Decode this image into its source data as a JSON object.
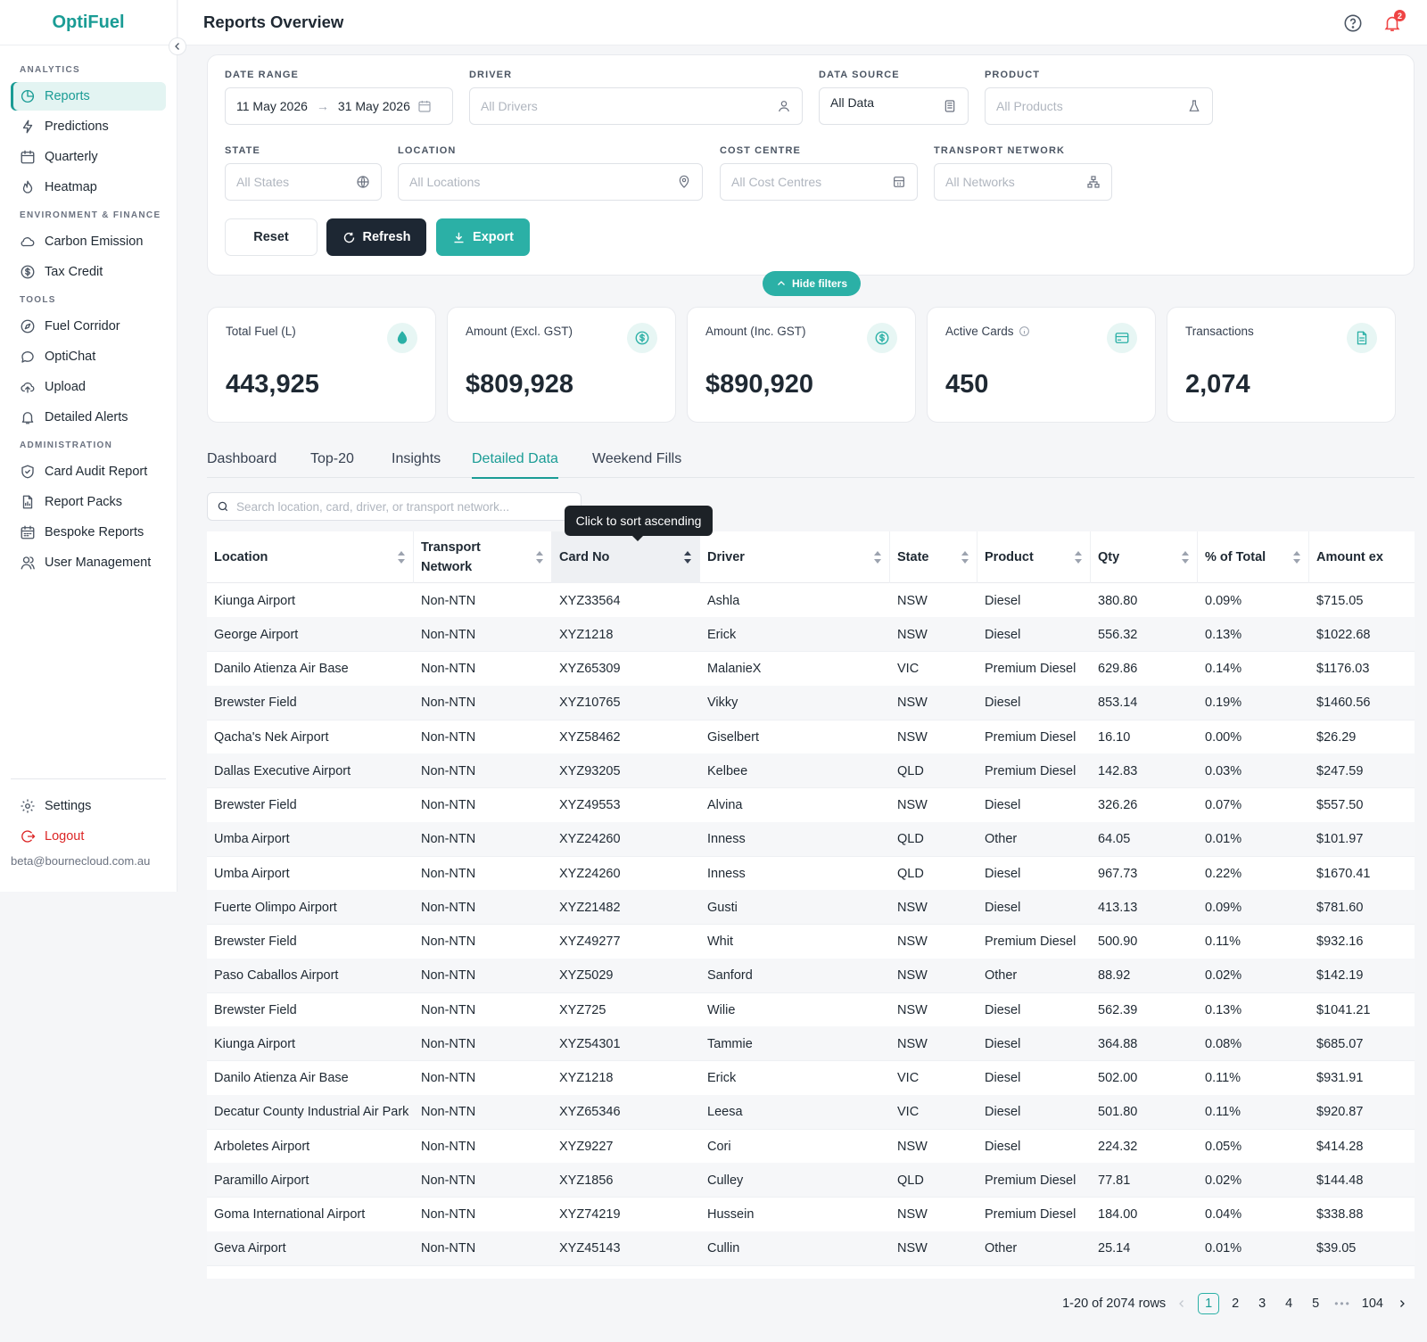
{
  "brand": "OptiFuel",
  "header": {
    "title": "Reports Overview",
    "notification_count": "2"
  },
  "sidebar": {
    "sections": [
      {
        "label": "ANALYTICS",
        "items": [
          {
            "label": "Reports",
            "icon": "pie-chart-icon",
            "active": true
          },
          {
            "label": "Predictions",
            "icon": "lightning-icon"
          },
          {
            "label": "Quarterly",
            "icon": "calendar-icon"
          },
          {
            "label": "Heatmap",
            "icon": "flame-icon"
          }
        ]
      },
      {
        "label": "ENVIRONMENT & FINANCE",
        "items": [
          {
            "label": "Carbon Emission",
            "icon": "cloud-icon"
          },
          {
            "label": "Tax Credit",
            "icon": "dollar-circle-icon"
          }
        ]
      },
      {
        "label": "TOOLS",
        "items": [
          {
            "label": "Fuel Corridor",
            "icon": "compass-icon"
          },
          {
            "label": "OptiChat",
            "icon": "chat-icon"
          },
          {
            "label": "Upload",
            "icon": "cloud-upload-icon"
          },
          {
            "label": "Detailed Alerts",
            "icon": "bell-icon"
          }
        ]
      },
      {
        "label": "ADMINISTRATION",
        "items": [
          {
            "label": "Card Audit Report",
            "icon": "shield-check-icon"
          },
          {
            "label": "Report Packs",
            "icon": "file-chart-icon"
          },
          {
            "label": "Bespoke Reports",
            "icon": "calendar-grid-icon"
          },
          {
            "label": "User Management",
            "icon": "users-icon"
          }
        ]
      }
    ],
    "settings_label": "Settings",
    "logout_label": "Logout",
    "user_email": "beta@bournecloud.com.au"
  },
  "filters": {
    "date_range_label": "DATE RANGE",
    "date_start": "11 May 2026",
    "date_end": "31 May 2026",
    "driver_label": "DRIVER",
    "driver_placeholder": "All Drivers",
    "data_source_label": "DATA SOURCE",
    "data_source_value": "All Data",
    "product_label": "PRODUCT",
    "product_placeholder": "All Products",
    "state_label": "STATE",
    "state_placeholder": "All States",
    "location_label": "LOCATION",
    "location_placeholder": "All Locations",
    "cost_centre_label": "COST CENTRE",
    "cost_centre_placeholder": "All Cost Centres",
    "transport_label": "TRANSPORT NETWORK",
    "transport_placeholder": "All Networks",
    "reset": "Reset",
    "refresh": "Refresh",
    "export": "Export",
    "hide_filters": "Hide filters"
  },
  "kpis": [
    {
      "label": "Total Fuel (L)",
      "value": "443,925",
      "icon": "droplet-icon"
    },
    {
      "label": "Amount (Excl. GST)",
      "value": "$809,928",
      "icon": "dollar-icon"
    },
    {
      "label": "Amount (Inc. GST)",
      "value": "$890,920",
      "icon": "dollar-icon"
    },
    {
      "label": "Active Cards",
      "value": "450",
      "icon": "card-icon"
    },
    {
      "label": "Transactions",
      "value": "2,074",
      "icon": "document-icon"
    }
  ],
  "tabs": [
    "Dashboard",
    "Top-20",
    "Insights",
    "Detailed Data",
    "Weekend Fills"
  ],
  "active_tab": "Detailed Data",
  "search_placeholder": "Search location, card, driver, or transport network...",
  "tooltip": "Click to sort ascending",
  "table": {
    "columns": [
      "Location",
      "Transport Network",
      "Card No",
      "Driver",
      "State",
      "Product",
      "Qty",
      "% of Total",
      "Amount ex"
    ],
    "transport_header_lines": [
      "Transport",
      "Network"
    ],
    "rows": [
      [
        "Kiunga Airport",
        "Non-NTN",
        "XYZ33564",
        "Ashla",
        "NSW",
        "Diesel",
        "380.80",
        "0.09%",
        "$715.05"
      ],
      [
        "George Airport",
        "Non-NTN",
        "XYZ1218",
        "Erick",
        "NSW",
        "Diesel",
        "556.32",
        "0.13%",
        "$1022.68"
      ],
      [
        "Danilo Atienza Air Base",
        "Non-NTN",
        "XYZ65309",
        "MalanieX",
        "VIC",
        "Premium Diesel",
        "629.86",
        "0.14%",
        "$1176.03"
      ],
      [
        "Brewster Field",
        "Non-NTN",
        "XYZ10765",
        "Vikky",
        "NSW",
        "Diesel",
        "853.14",
        "0.19%",
        "$1460.56"
      ],
      [
        "Qacha's Nek Airport",
        "Non-NTN",
        "XYZ58462",
        "Giselbert",
        "NSW",
        "Premium Diesel",
        "16.10",
        "0.00%",
        "$26.29"
      ],
      [
        "Dallas Executive Airport",
        "Non-NTN",
        "XYZ93205",
        "Kelbee",
        "QLD",
        "Premium Diesel",
        "142.83",
        "0.03%",
        "$247.59"
      ],
      [
        "Brewster Field",
        "Non-NTN",
        "XYZ49553",
        "Alvina",
        "NSW",
        "Diesel",
        "326.26",
        "0.07%",
        "$557.50"
      ],
      [
        "Umba Airport",
        "Non-NTN",
        "XYZ24260",
        "Inness",
        "QLD",
        "Other",
        "64.05",
        "0.01%",
        "$101.97"
      ],
      [
        "Umba Airport",
        "Non-NTN",
        "XYZ24260",
        "Inness",
        "QLD",
        "Diesel",
        "967.73",
        "0.22%",
        "$1670.41"
      ],
      [
        "Fuerte Olimpo Airport",
        "Non-NTN",
        "XYZ21482",
        "Gusti",
        "NSW",
        "Diesel",
        "413.13",
        "0.09%",
        "$781.60"
      ],
      [
        "Brewster Field",
        "Non-NTN",
        "XYZ49277",
        "Whit",
        "NSW",
        "Premium Diesel",
        "500.90",
        "0.11%",
        "$932.16"
      ],
      [
        "Paso Caballos Airport",
        "Non-NTN",
        "XYZ5029",
        "Sanford",
        "NSW",
        "Other",
        "88.92",
        "0.02%",
        "$142.19"
      ],
      [
        "Brewster Field",
        "Non-NTN",
        "XYZ725",
        "Wilie",
        "NSW",
        "Diesel",
        "562.39",
        "0.13%",
        "$1041.21"
      ],
      [
        "Kiunga Airport",
        "Non-NTN",
        "XYZ54301",
        "Tammie",
        "NSW",
        "Diesel",
        "364.88",
        "0.08%",
        "$685.07"
      ],
      [
        "Danilo Atienza Air Base",
        "Non-NTN",
        "XYZ1218",
        "Erick",
        "VIC",
        "Diesel",
        "502.00",
        "0.11%",
        "$931.91"
      ],
      [
        "Decatur County Industrial Air Park",
        "Non-NTN",
        "XYZ65346",
        "Leesa",
        "VIC",
        "Diesel",
        "501.80",
        "0.11%",
        "$920.87"
      ],
      [
        "Arboletes Airport",
        "Non-NTN",
        "XYZ9227",
        "Cori",
        "NSW",
        "Diesel",
        "224.32",
        "0.05%",
        "$414.28"
      ],
      [
        "Paramillo Airport",
        "Non-NTN",
        "XYZ1856",
        "Culley",
        "QLD",
        "Premium Diesel",
        "77.81",
        "0.02%",
        "$144.48"
      ],
      [
        "Goma International Airport",
        "Non-NTN",
        "XYZ74219",
        "Hussein",
        "NSW",
        "Premium Diesel",
        "184.00",
        "0.04%",
        "$338.88"
      ],
      [
        "Geva Airport",
        "Non-NTN",
        "XYZ45143",
        "Cullin",
        "NSW",
        "Other",
        "25.14",
        "0.01%",
        "$39.05"
      ]
    ]
  },
  "pagination": {
    "summary": "1-20 of 2074 rows",
    "pages": [
      "1",
      "2",
      "3",
      "4",
      "5"
    ],
    "ellipsis": "•••",
    "last_page": "104",
    "current": "1"
  }
}
